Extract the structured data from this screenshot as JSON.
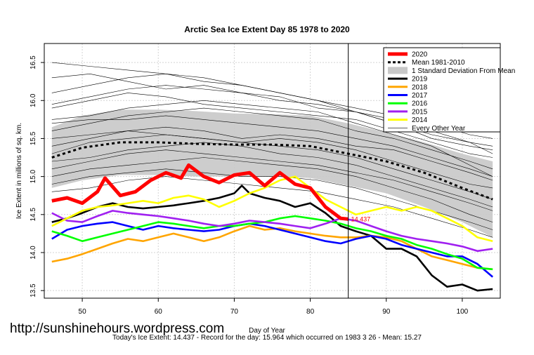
{
  "chart_data": {
    "type": "line",
    "title": "Arctic Sea Ice Extent Day 85 1978 to 2020",
    "xlabel": "Day of Year",
    "ylabel": "Ice Extent in millions of sq. km.",
    "xlim": [
      45,
      105
    ],
    "ylim": [
      13.4,
      16.75
    ],
    "x_ticks": [
      50,
      60,
      70,
      80,
      90,
      100
    ],
    "y_ticks": [
      13.5,
      14.0,
      14.5,
      15.0,
      15.5,
      16.0,
      16.5
    ],
    "grid": true,
    "current_day_marker": 85,
    "current_value_label": "14.437",
    "legend": {
      "placement": "top-right",
      "entries": [
        {
          "label": "2020",
          "color": "#ff0000"
        },
        {
          "label": "Mean 1981-2010",
          "color": "#000000"
        },
        {
          "label": "1 Standard Deviation From Mean",
          "color": "#c8c8c8"
        },
        {
          "label": "2019",
          "color": "#000000"
        },
        {
          "label": "2018",
          "color": "#ffa500"
        },
        {
          "label": "2017",
          "color": "#0000ff"
        },
        {
          "label": "2016",
          "color": "#00ff00"
        },
        {
          "label": "2015",
          "color": "#a020f0"
        },
        {
          "label": "2014",
          "color": "#ffff00"
        },
        {
          "label": "Every Other Year",
          "color": "#000000"
        }
      ]
    },
    "mean": {
      "x": [
        46,
        50,
        55,
        60,
        65,
        70,
        75,
        80,
        85,
        90,
        95,
        100,
        104
      ],
      "values": [
        15.25,
        15.38,
        15.45,
        15.45,
        15.43,
        15.42,
        15.42,
        15.4,
        15.3,
        15.2,
        15.05,
        14.85,
        14.7
      ]
    },
    "std_band": {
      "x": [
        46,
        50,
        55,
        60,
        65,
        70,
        75,
        80,
        85,
        90,
        95,
        100,
        104
      ],
      "upper": [
        15.65,
        15.8,
        15.88,
        15.88,
        15.86,
        15.83,
        15.82,
        15.8,
        15.7,
        15.58,
        15.45,
        15.3,
        15.2
      ],
      "lower": [
        14.85,
        14.95,
        15.02,
        15.02,
        15.0,
        15.0,
        15.0,
        14.98,
        14.88,
        14.78,
        14.6,
        14.4,
        14.2
      ]
    },
    "series": [
      {
        "name": "2019",
        "color": "#000000",
        "x": [
          46,
          48,
          50,
          52,
          54,
          56,
          58,
          60,
          62,
          64,
          66,
          68,
          70,
          71,
          72,
          74,
          76,
          78,
          80,
          82,
          84,
          86,
          88,
          90,
          92,
          94,
          96,
          98,
          100,
          102,
          104
        ],
        "values": [
          14.4,
          14.45,
          14.52,
          14.6,
          14.65,
          14.6,
          14.58,
          14.6,
          14.62,
          14.65,
          14.68,
          14.72,
          14.78,
          14.88,
          14.78,
          14.72,
          14.68,
          14.6,
          14.65,
          14.52,
          14.35,
          14.28,
          14.22,
          14.05,
          14.05,
          13.95,
          13.7,
          13.55,
          13.58,
          13.5,
          13.52
        ]
      },
      {
        "name": "2018",
        "color": "#ffa500",
        "x": [
          46,
          48,
          50,
          52,
          54,
          56,
          58,
          60,
          62,
          64,
          66,
          68,
          70,
          72,
          74,
          76,
          78,
          80,
          82,
          84,
          86,
          88,
          90,
          92,
          94,
          96,
          98,
          100,
          102,
          104
        ],
        "values": [
          13.88,
          13.92,
          13.98,
          14.05,
          14.12,
          14.18,
          14.15,
          14.2,
          14.25,
          14.2,
          14.15,
          14.2,
          14.28,
          14.35,
          14.3,
          14.32,
          14.28,
          14.25,
          14.22,
          14.2,
          14.2,
          14.22,
          14.2,
          14.15,
          14.05,
          13.95,
          13.9,
          13.85,
          13.8,
          13.78
        ]
      },
      {
        "name": "2017",
        "color": "#0000ff",
        "x": [
          46,
          48,
          50,
          52,
          54,
          56,
          58,
          60,
          62,
          64,
          66,
          68,
          70,
          72,
          74,
          76,
          78,
          80,
          82,
          84,
          86,
          88,
          90,
          92,
          94,
          96,
          98,
          100,
          102,
          104
        ],
        "values": [
          14.18,
          14.3,
          14.35,
          14.38,
          14.4,
          14.35,
          14.3,
          14.35,
          14.32,
          14.3,
          14.28,
          14.3,
          14.35,
          14.38,
          14.35,
          14.3,
          14.25,
          14.2,
          14.15,
          14.12,
          14.18,
          14.22,
          14.18,
          14.1,
          14.05,
          14.0,
          13.95,
          13.95,
          13.85,
          13.68
        ]
      },
      {
        "name": "2016",
        "color": "#00ff00",
        "x": [
          46,
          48,
          50,
          52,
          54,
          56,
          58,
          60,
          62,
          64,
          66,
          68,
          70,
          72,
          74,
          76,
          78,
          80,
          82,
          84,
          86,
          88,
          90,
          92,
          94,
          96,
          98,
          100,
          102,
          104
        ],
        "values": [
          14.28,
          14.22,
          14.15,
          14.2,
          14.25,
          14.3,
          14.35,
          14.4,
          14.38,
          14.35,
          14.32,
          14.35,
          14.35,
          14.38,
          14.4,
          14.45,
          14.48,
          14.45,
          14.42,
          14.38,
          14.32,
          14.28,
          14.22,
          14.18,
          14.1,
          14.05,
          13.98,
          13.92,
          13.8,
          13.78
        ]
      },
      {
        "name": "2015",
        "color": "#a020f0",
        "x": [
          46,
          48,
          50,
          52,
          54,
          56,
          58,
          60,
          62,
          64,
          66,
          68,
          70,
          72,
          74,
          76,
          78,
          80,
          82,
          84,
          86,
          88,
          90,
          92,
          94,
          96,
          98,
          100,
          102,
          104
        ],
        "values": [
          14.52,
          14.42,
          14.4,
          14.48,
          14.55,
          14.52,
          14.5,
          14.48,
          14.45,
          14.42,
          14.38,
          14.35,
          14.38,
          14.42,
          14.4,
          14.38,
          14.35,
          14.32,
          14.38,
          14.45,
          14.42,
          14.35,
          14.28,
          14.22,
          14.18,
          14.15,
          14.12,
          14.08,
          14.02,
          14.05
        ]
      },
      {
        "name": "2014",
        "color": "#ffff00",
        "x": [
          46,
          48,
          50,
          52,
          54,
          56,
          58,
          60,
          62,
          64,
          66,
          68,
          70,
          72,
          74,
          76,
          78,
          80,
          82,
          84,
          86,
          88,
          90,
          92,
          94,
          96,
          98,
          100,
          102,
          104
        ],
        "values": [
          14.35,
          14.45,
          14.55,
          14.6,
          14.62,
          14.65,
          14.68,
          14.65,
          14.72,
          14.75,
          14.7,
          14.6,
          14.68,
          14.78,
          14.85,
          14.95,
          15.0,
          14.85,
          14.7,
          14.6,
          14.5,
          14.55,
          14.6,
          14.55,
          14.6,
          14.55,
          14.45,
          14.35,
          14.2,
          14.15
        ]
      },
      {
        "name": "2020",
        "color": "#ff0000",
        "x": [
          46,
          48,
          50,
          52,
          53,
          55,
          57,
          59,
          61,
          63,
          64,
          66,
          68,
          70,
          72,
          74,
          76,
          78,
          80,
          82,
          84,
          85
        ],
        "values": [
          14.68,
          14.72,
          14.65,
          14.8,
          14.98,
          14.75,
          14.8,
          14.95,
          15.05,
          14.98,
          15.15,
          15.0,
          14.92,
          15.02,
          15.05,
          14.88,
          15.05,
          14.9,
          14.85,
          14.6,
          14.45,
          14.44
        ]
      }
    ],
    "background_years": [
      {
        "name": "bg1",
        "values": [
          16.3,
          16.35,
          16.25,
          16.15,
          16.2,
          16.1,
          16.05,
          15.9,
          15.85,
          15.7,
          15.5,
          15.4,
          15.35
        ]
      },
      {
        "name": "bg2",
        "values": [
          16.1,
          16.2,
          16.3,
          16.35,
          16.3,
          16.2,
          16.1,
          16.0,
          15.9,
          15.8,
          15.7,
          15.55,
          15.5
        ]
      },
      {
        "name": "bg3",
        "values": [
          15.9,
          16.0,
          16.1,
          16.05,
          15.95,
          15.9,
          15.85,
          15.8,
          15.75,
          15.6,
          15.45,
          15.3,
          15.25
        ]
      },
      {
        "name": "bg4",
        "values": [
          15.6,
          15.7,
          15.8,
          15.85,
          15.9,
          15.85,
          15.8,
          15.75,
          15.6,
          15.5,
          15.35,
          15.2,
          15.1
        ]
      },
      {
        "name": "bg5",
        "values": [
          15.5,
          15.55,
          15.6,
          15.65,
          15.6,
          15.5,
          15.55,
          15.5,
          15.4,
          15.35,
          15.2,
          15.05,
          14.95
        ]
      },
      {
        "name": "bg6",
        "values": [
          15.3,
          15.45,
          15.5,
          15.55,
          15.5,
          15.45,
          15.4,
          15.35,
          15.25,
          15.1,
          14.95,
          14.8,
          14.7
        ]
      },
      {
        "name": "bg7",
        "values": [
          15.1,
          15.2,
          15.3,
          15.35,
          15.3,
          15.25,
          15.2,
          15.15,
          15.05,
          14.95,
          14.8,
          14.65,
          14.55
        ]
      },
      {
        "name": "bg8",
        "values": [
          15.0,
          15.1,
          15.15,
          15.2,
          15.25,
          15.2,
          15.15,
          15.1,
          15.0,
          14.85,
          14.7,
          14.5,
          14.4
        ]
      },
      {
        "name": "bg9",
        "values": [
          14.9,
          15.0,
          15.05,
          15.1,
          15.05,
          15.0,
          15.0,
          14.95,
          14.85,
          14.7,
          14.55,
          14.4,
          14.3
        ]
      },
      {
        "name": "bg10",
        "values": [
          14.8,
          14.85,
          14.95,
          15.0,
          14.95,
          14.9,
          14.85,
          14.8,
          14.7,
          14.6,
          14.45,
          14.3,
          14.2
        ]
      },
      {
        "name": "bg11",
        "values": [
          16.5,
          16.45,
          16.4,
          16.35,
          16.25,
          16.2,
          16.1,
          16.0,
          15.85,
          15.7,
          15.55,
          15.45,
          15.4
        ]
      },
      {
        "name": "bg12",
        "values": [
          15.75,
          15.8,
          15.9,
          15.95,
          16.0,
          15.95,
          15.9,
          15.85,
          15.7,
          15.55,
          15.4,
          15.15,
          15.0
        ]
      },
      {
        "name": "bg13",
        "values": [
          15.4,
          15.5,
          15.6,
          15.55,
          15.5,
          15.45,
          15.5,
          15.45,
          15.35,
          15.2,
          15.05,
          14.9,
          14.85
        ]
      },
      {
        "name": "bg14",
        "values": [
          15.2,
          15.25,
          15.35,
          15.4,
          15.45,
          15.4,
          15.3,
          15.25,
          15.15,
          15.0,
          14.85,
          14.7,
          14.6
        ]
      },
      {
        "name": "bg15",
        "values": [
          15.95,
          16.05,
          16.15,
          16.2,
          16.15,
          16.1,
          16.0,
          15.95,
          15.85,
          15.75,
          15.6,
          15.45,
          15.3
        ]
      },
      {
        "name": "bg16",
        "values": [
          15.7,
          15.75,
          15.75,
          15.8,
          15.75,
          15.7,
          15.65,
          15.6,
          15.5,
          15.4,
          15.25,
          15.1,
          15.0
        ]
      }
    ],
    "background_x": [
      46,
      51,
      56,
      61,
      66,
      71,
      76,
      81,
      86,
      91,
      96,
      101,
      104
    ]
  },
  "watermark": "http://sunshinehours.wordpress.com",
  "footer": "Today's Ice Extent: 14.437  - Record for the day: 15.964 which occurred on 1983 3 26  - Mean: 15.27"
}
